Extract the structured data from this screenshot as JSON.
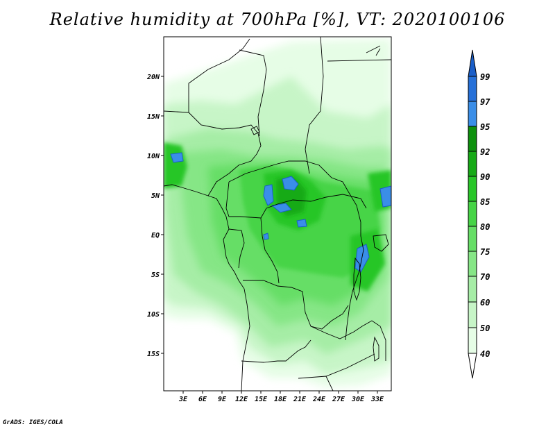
{
  "title": "Relative humidity at 700hPa [%], VT: 2020100106",
  "credit": "GrADS: IGES/COLA",
  "map": {
    "lat_labels": [
      "20N",
      "15N",
      "10N",
      "5N",
      "EQ",
      "5S",
      "10S",
      "15S"
    ],
    "lon_labels": [
      "3E",
      "6E",
      "9E",
      "12E",
      "15E",
      "18E",
      "21E",
      "24E",
      "27E",
      "30E",
      "33E"
    ]
  },
  "colorbar": {
    "levels": [
      "40",
      "50",
      "60",
      "70",
      "75",
      "80",
      "85",
      "90",
      "92",
      "95",
      "97",
      "99"
    ],
    "colors": [
      "#ffffff",
      "#e6fde6",
      "#c7f5c7",
      "#a6eda6",
      "#86e686",
      "#66de66",
      "#46d446",
      "#28c628",
      "#16aa16",
      "#0d910d",
      "#3a8ee8",
      "#2570d8",
      "#1a5ec8"
    ]
  }
}
